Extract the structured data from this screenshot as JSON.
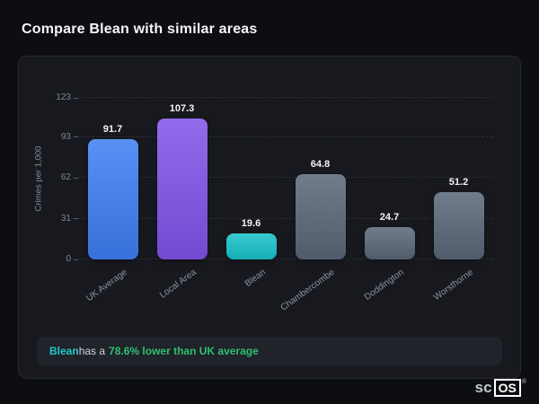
{
  "page_title": "Compare Blean with similar areas",
  "footer_note": {
    "area": "Blean",
    "middle": " has a",
    "highlight": "78.6% lower than UK average"
  },
  "logo": {
    "prefix": "sc",
    "boxed": "OS",
    "registered": "®"
  },
  "chart_data": {
    "type": "bar",
    "categories": [
      "UK Average",
      "Local Area",
      "Blean",
      "Chambercombe",
      "Doddington",
      "Worsthorne"
    ],
    "values": [
      91.7,
      107.3,
      19.6,
      64.8,
      24.7,
      51.2
    ],
    "bar_colors": [
      "#3d7ef2",
      "#8152e8",
      "#17c2c9",
      "#596678",
      "#596678",
      "#596678"
    ],
    "title": "Compare Blean with similar areas",
    "xlabel": "",
    "ylabel": "Crimes per 1,000",
    "yticks": [
      0,
      31,
      62,
      93,
      123
    ],
    "ylim": [
      0,
      123
    ],
    "grid": "horizontal-dashed",
    "legend": "none"
  }
}
